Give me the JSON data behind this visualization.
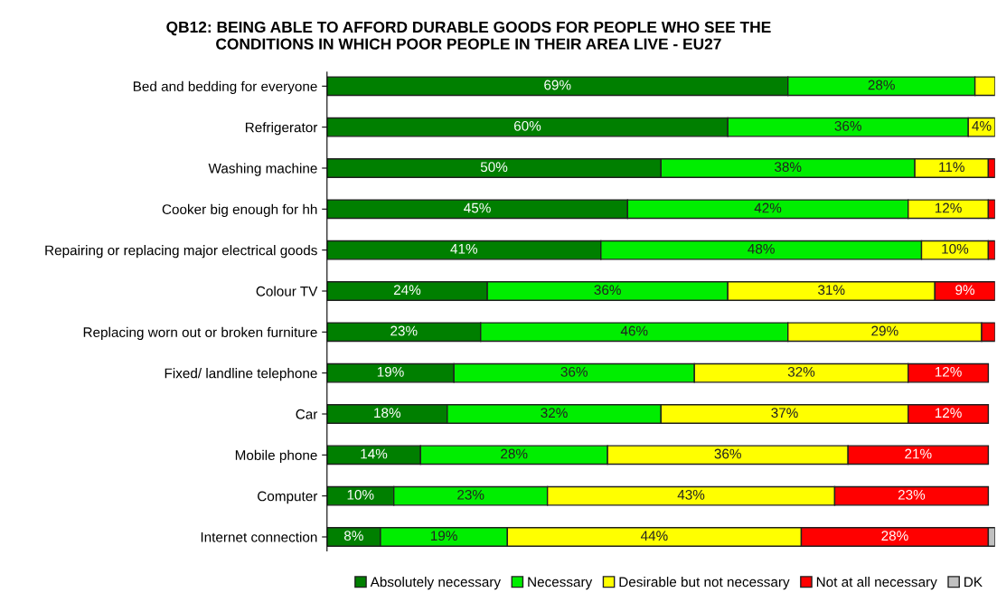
{
  "chart_data": {
    "type": "bar",
    "orientation": "horizontal",
    "stacked": true,
    "title": "QB12: BEING ABLE TO AFFORD DURABLE GOODS FOR PEOPLE WHO SEE THE\nCONDITIONS IN WHICH POOR PEOPLE IN THEIR AREA LIVE - EU27",
    "categories": [
      "Bed and bedding for everyone",
      "Refrigerator",
      "Washing machine",
      "Cooker big enough for hh",
      "Repairing or replacing major electrical goods",
      "Colour TV",
      "Replacing worn out or broken furniture",
      "Fixed/ landline telephone",
      "Car",
      "Mobile phone",
      "Computer",
      "Internet connection"
    ],
    "series": [
      {
        "name": "Absolutely necessary",
        "color": "#007f00",
        "values": [
          69,
          60,
          50,
          45,
          41,
          24,
          23,
          19,
          18,
          14,
          10,
          8
        ],
        "value_labels": [
          "69%",
          "60%",
          "50%",
          "45%",
          "41%",
          "24%",
          "23%",
          "19%",
          "18%",
          "14%",
          "10%",
          "8%"
        ]
      },
      {
        "name": "Necessary",
        "color": "#00ee00",
        "values": [
          28,
          36,
          38,
          42,
          48,
          36,
          46,
          36,
          32,
          28,
          23,
          19
        ],
        "value_labels": [
          "28%",
          "36%",
          "38%",
          "42%",
          "48%",
          "36%",
          "46%",
          "36%",
          "32%",
          "28%",
          "23%",
          "19%"
        ]
      },
      {
        "name": "Desirable but not necessary",
        "color": "#ffff00",
        "values": [
          3,
          4,
          11,
          12,
          10,
          31,
          29,
          32,
          37,
          36,
          43,
          44
        ],
        "value_labels": [
          null,
          "4%",
          "11%",
          "12%",
          "10%",
          "31%",
          "29%",
          "32%",
          "37%",
          "36%",
          "43%",
          "44%"
        ]
      },
      {
        "name": "Not at all necessary",
        "color": "#ff0000",
        "values": [
          null,
          null,
          1,
          1,
          1,
          9,
          2,
          12,
          12,
          21,
          23,
          28
        ],
        "value_labels": [
          null,
          null,
          null,
          null,
          null,
          "9%",
          null,
          "12%",
          "12%",
          "21%",
          "23%",
          "28%"
        ]
      },
      {
        "name": "DK",
        "color": "#c0c0c0",
        "values": [
          null,
          null,
          null,
          null,
          null,
          null,
          null,
          null,
          null,
          null,
          null,
          1
        ],
        "value_labels": [
          null,
          null,
          null,
          null,
          null,
          null,
          null,
          null,
          null,
          null,
          null,
          null
        ]
      }
    ],
    "legend": "bottom",
    "grid": false
  }
}
